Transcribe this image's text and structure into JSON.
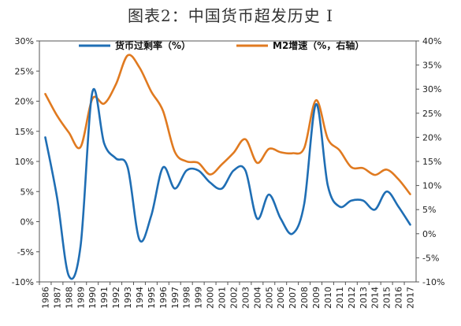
{
  "chart_data": {
    "type": "line",
    "title": "图表2：中国货币超发历史 I",
    "x": [
      "1986",
      "1987",
      "1988",
      "1989",
      "1990",
      "1991",
      "1992",
      "1993",
      "1994",
      "1995",
      "1996",
      "1997",
      "1998",
      "1999",
      "2000",
      "2001",
      "2002",
      "2003",
      "2004",
      "2005",
      "2006",
      "2007",
      "2008",
      "2009",
      "2010",
      "2011",
      "2012",
      "2013",
      "2014",
      "2015",
      "2016",
      "2017"
    ],
    "series": [
      {
        "name": "货币过剩率（%）",
        "axis": "left",
        "color": "#1F6EB4",
        "values": [
          14,
          4,
          -9,
          -4,
          21.5,
          13,
          10.5,
          9,
          -3,
          1,
          9,
          5.5,
          8.5,
          8.5,
          6.5,
          5.5,
          8.5,
          8.5,
          0.5,
          4.5,
          0.5,
          -2,
          3,
          19.5,
          6,
          2.5,
          3.5,
          3.5,
          2,
          5,
          2.5,
          -0.5
        ]
      },
      {
        "name": "M2增速（%，右轴）",
        "axis": "right",
        "color": "#E07A20",
        "values": [
          29,
          24.5,
          21,
          18,
          28,
          27,
          31,
          37,
          34.5,
          29.5,
          25.5,
          17,
          15,
          14.7,
          12.3,
          14.4,
          16.8,
          19.6,
          14.7,
          17.6,
          16.9,
          16.7,
          17.8,
          27.7,
          19.7,
          17.3,
          13.8,
          13.6,
          12.2,
          13.3,
          11.3,
          8.2
        ]
      }
    ],
    "y_left": {
      "ticks": [
        "30%",
        "25%",
        "20%",
        "15%",
        "10%",
        "5%",
        "0%",
        "-5%",
        "-10%"
      ],
      "range": [
        -10,
        30
      ]
    },
    "y_right": {
      "ticks": [
        "40%",
        "35%",
        "30%",
        "25%",
        "20%",
        "15%",
        "10%",
        "5%",
        "0%",
        "-5%",
        "-10%"
      ],
      "range": [
        -10,
        40
      ]
    },
    "legend_position": "top"
  }
}
